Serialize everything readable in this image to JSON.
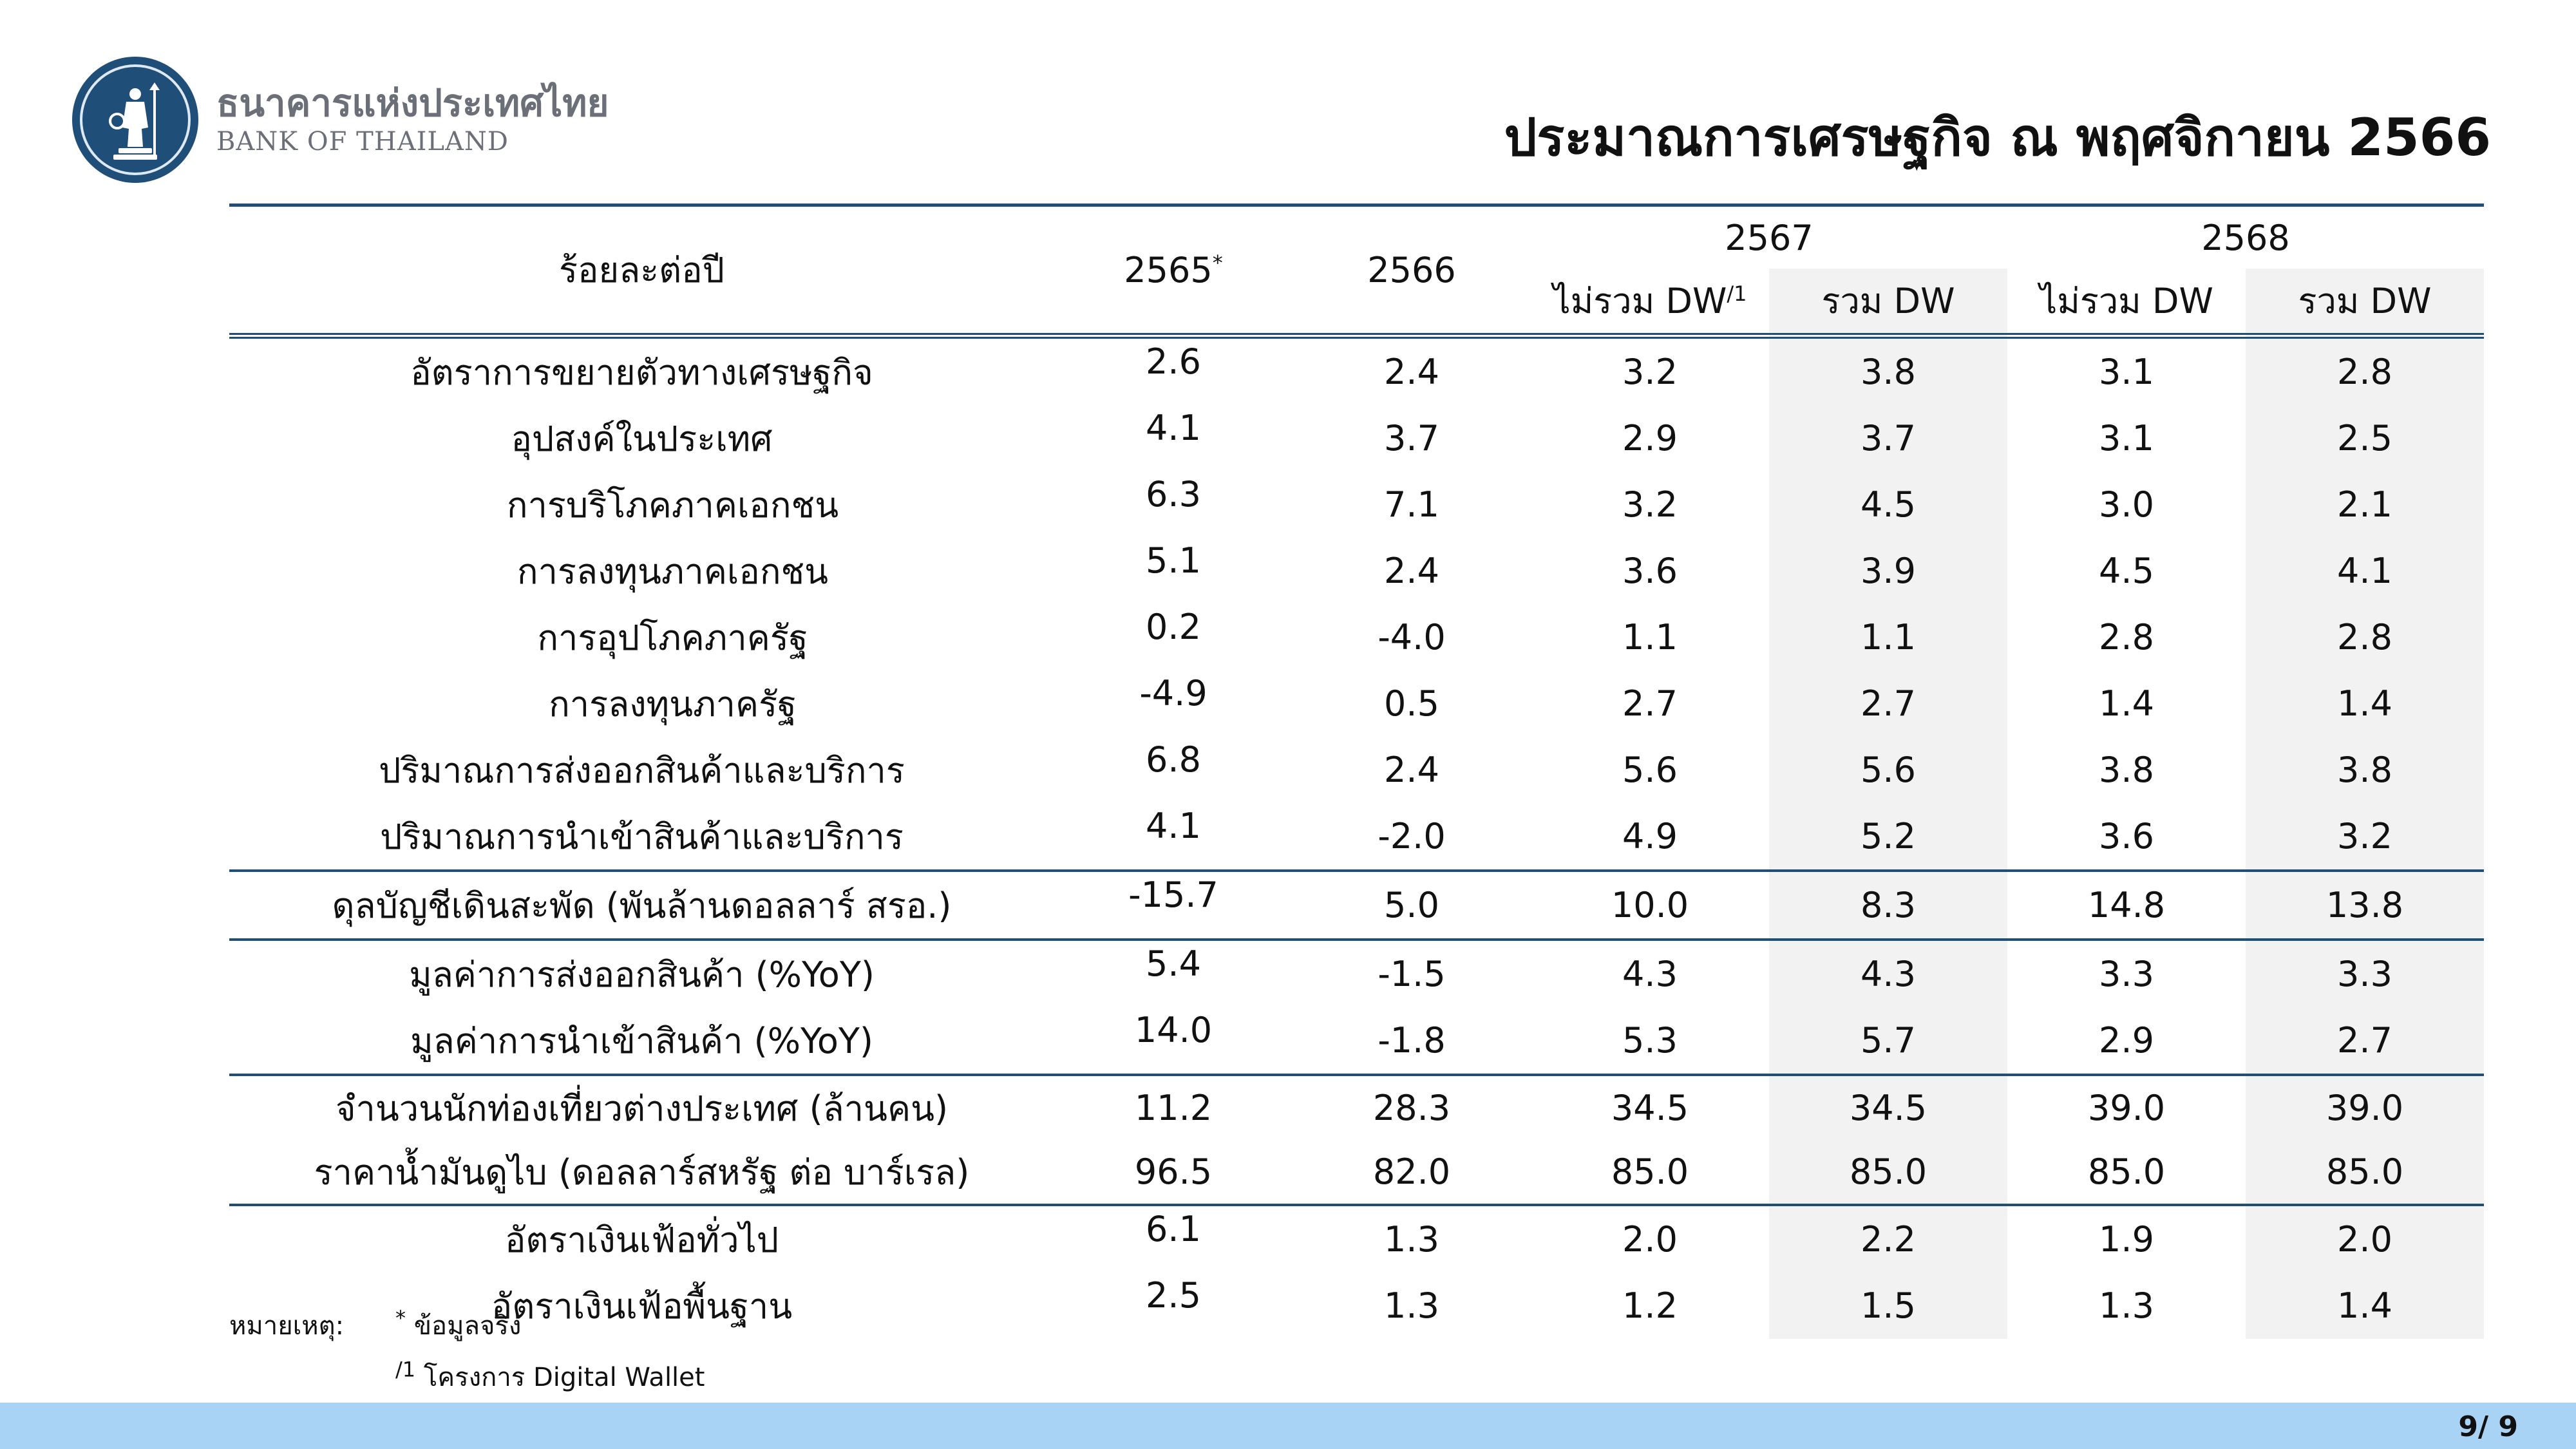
{
  "header": {
    "logo_thai": "ธนาคารแห่งประเทศไทย",
    "logo_english": "BANK OF THAILAND",
    "title": "ประมาณการเศรษฐกิจ ณ พฤศจิกายน 2566"
  },
  "table": {
    "corner_label": "ร้อยละต่อปี",
    "year_2565": "2565",
    "year_2565_mark": "*",
    "year_2566": "2566",
    "year_2567": "2567",
    "year_2568": "2568",
    "sub_excl_2567": "ไม่รวม DW",
    "sub_excl_2567_mark": "/1",
    "sub_incl_2567": "รวม DW",
    "sub_excl_2568": "ไม่รวม DW",
    "sub_incl_2568": "รวม DW",
    "rows": [
      {
        "label": "อัตราการขยายตัวทางเศรษฐกิจ",
        "v": [
          "2.6",
          "2.4",
          "3.2",
          "3.8",
          "3.1",
          "2.8"
        ]
      },
      {
        "label": "อุปสงค์ในประเทศ",
        "v": [
          "4.1",
          "3.7",
          "2.9",
          "3.7",
          "3.1",
          "2.5"
        ]
      },
      {
        "label": "การบริโภคภาคเอกชน",
        "v": [
          "6.3",
          "7.1",
          "3.2",
          "4.5",
          "3.0",
          "2.1"
        ]
      },
      {
        "label": "การลงทุนภาคเอกชน",
        "v": [
          "5.1",
          "2.4",
          "3.6",
          "3.9",
          "4.5",
          "4.1"
        ]
      },
      {
        "label": "การอุปโภคภาครัฐ",
        "v": [
          "0.2",
          "-4.0",
          "1.1",
          "1.1",
          "2.8",
          "2.8"
        ]
      },
      {
        "label": "การลงทุนภาครัฐ",
        "v": [
          "-4.9",
          "0.5",
          "2.7",
          "2.7",
          "1.4",
          "1.4"
        ]
      },
      {
        "label": "ปริมาณการส่งออกสินค้าและบริการ",
        "v": [
          "6.8",
          "2.4",
          "5.6",
          "5.6",
          "3.8",
          "3.8"
        ]
      },
      {
        "label": "ปริมาณการนำเข้าสินค้าและบริการ",
        "v": [
          "4.1",
          "-2.0",
          "4.9",
          "5.2",
          "3.6",
          "3.2"
        ]
      },
      {
        "label": "ดุลบัญชีเดินสะพัด (พันล้านดอลลาร์ สรอ.)",
        "v": [
          "-15.7",
          "5.0",
          "10.0",
          "8.3",
          "14.8",
          "13.8"
        ]
      },
      {
        "label": "มูลค่าการส่งออกสินค้า (%YoY)",
        "v": [
          "5.4",
          "-1.5",
          "4.3",
          "4.3",
          "3.3",
          "3.3"
        ]
      },
      {
        "label": "มูลค่าการนำเข้าสินค้า (%YoY)",
        "v": [
          "14.0",
          "-1.8",
          "5.3",
          "5.7",
          "2.9",
          "2.7"
        ]
      },
      {
        "label": "จำนวนนักท่องเที่ยวต่างประเทศ (ล้านคน)",
        "v": [
          "11.2",
          "28.3",
          "34.5",
          "34.5",
          "39.0",
          "39.0"
        ]
      },
      {
        "label": "ราคาน้ำมันดูไบ (ดอลลาร์สหรัฐ ต่อ บาร์เรล)",
        "v": [
          "96.5",
          "82.0",
          "85.0",
          "85.0",
          "85.0",
          "85.0"
        ]
      },
      {
        "label": "อัตราเงินเฟ้อทั่วไป",
        "v": [
          "6.1",
          "1.3",
          "2.0",
          "2.2",
          "1.9",
          "2.0"
        ]
      },
      {
        "label": "อัตราเงินเฟ้อพื้นฐาน",
        "v": [
          "2.5",
          "1.3",
          "1.2",
          "1.5",
          "1.3",
          "1.4"
        ]
      }
    ]
  },
  "notes": {
    "heading": "หมายเหตุ:",
    "note1_mark": "*",
    "note1_text": " ข้อมูลจริง",
    "note2_mark": "/1",
    "note2_text": " โครงการ Digital Wallet"
  },
  "footer": {
    "page": "9/ 9"
  }
}
